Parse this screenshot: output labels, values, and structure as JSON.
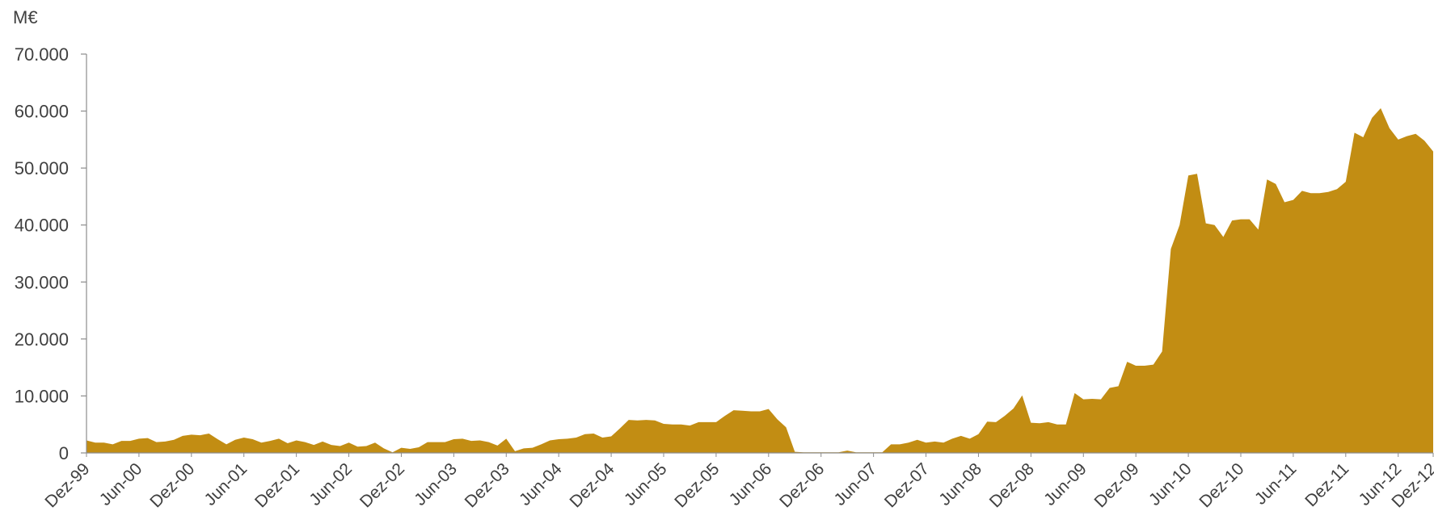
{
  "chart_data": {
    "type": "area",
    "title": "",
    "ylabel": "M€",
    "xlabel": "",
    "ylim": [
      0,
      70000
    ],
    "yticks": [
      {
        "value": 0,
        "label": "0"
      },
      {
        "value": 10000,
        "label": "10.000"
      },
      {
        "value": 20000,
        "label": "20.000"
      },
      {
        "value": 30000,
        "label": "30.000"
      },
      {
        "value": 40000,
        "label": "40.000"
      },
      {
        "value": 50000,
        "label": "50.000"
      },
      {
        "value": 60000,
        "label": "60.000"
      },
      {
        "value": 70000,
        "label": "70.000"
      }
    ],
    "xticks": [
      "Dez-99",
      "Jun-00",
      "Dez-00",
      "Jun-01",
      "Dez-01",
      "Jun-02",
      "Dez-02",
      "Jun-03",
      "Dez-03",
      "Jun-04",
      "Dez-04",
      "Jun-05",
      "Dez-05",
      "Jun-06",
      "Dez-06",
      "Jun-07",
      "Dez-07",
      "Jun-08",
      "Dez-08",
      "Jun-09",
      "Dez-09",
      "Jun-10",
      "Dez-10",
      "Jun-11",
      "Dez-11",
      "Jun-12",
      "Dez-12"
    ],
    "x_start": "Dez-99",
    "x_end": "Dez-12",
    "grid": false,
    "legend": "none",
    "color": "#C28D13",
    "values": [
      2200,
      1800,
      1800,
      1500,
      2100,
      2100,
      2500,
      2600,
      1900,
      2000,
      2300,
      3000,
      3200,
      3100,
      3400,
      2400,
      1500,
      2300,
      2700,
      2400,
      1800,
      2100,
      2500,
      1700,
      2200,
      1900,
      1400,
      2000,
      1400,
      1200,
      1800,
      1100,
      1200,
      1800,
      800,
      100,
      900,
      700,
      1000,
      1900,
      1900,
      1900,
      2400,
      2500,
      2100,
      2200,
      1900,
      1300,
      2500,
      300,
      800,
      900,
      1500,
      2200,
      2400,
      2500,
      2700,
      3300,
      3400,
      2700,
      2900,
      4300,
      5800,
      5700,
      5800,
      5700,
      5100,
      5000,
      5000,
      4800,
      5400,
      5400,
      5400,
      6500,
      7500,
      7400,
      7300,
      7300,
      7700,
      5900,
      4500,
      200,
      100,
      100,
      100,
      100,
      100,
      400,
      100,
      100,
      100,
      100,
      1500,
      1500,
      1800,
      2300,
      1800,
      2000,
      1800,
      2500,
      3000,
      2500,
      3300,
      5500,
      5400,
      6500,
      7800,
      10100,
      5300,
      5200,
      5400,
      5000,
      5000,
      10500,
      9400,
      9500,
      9400,
      11400,
      11700,
      16000,
      15300,
      15300,
      15500,
      17800,
      35800,
      40000,
      48700,
      49000,
      40300,
      40000,
      37900,
      40800,
      41000,
      41000,
      39200,
      48000,
      47200,
      44000,
      44400,
      46000,
      45600,
      45600,
      45800,
      46300,
      47600,
      56200,
      55400,
      58800,
      60500,
      57000,
      55000,
      55600,
      56000,
      54800,
      52900
    ]
  }
}
